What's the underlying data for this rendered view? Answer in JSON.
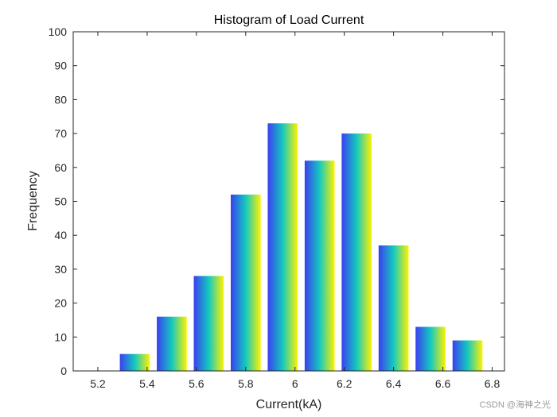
{
  "chart_data": {
    "type": "bar",
    "title": "Histogram of Load Current",
    "xlabel": "Current(kA)",
    "ylabel": "Frequency",
    "x": [
      5.2,
      5.35,
      5.5,
      5.65,
      5.8,
      5.95,
      6.1,
      6.25,
      6.4,
      6.55,
      6.7
    ],
    "values": [
      0,
      5,
      16,
      28,
      52,
      73,
      62,
      70,
      37,
      13,
      9
    ],
    "bin_width": 0.15,
    "xlim": [
      5.1,
      6.85
    ],
    "ylim": [
      0,
      100
    ],
    "xticks": [
      "5.2",
      "5.4",
      "5.6",
      "5.8",
      "6",
      "6.2",
      "6.4",
      "6.6",
      "6.8"
    ],
    "yticks": [
      "0",
      "10",
      "20",
      "30",
      "40",
      "50",
      "60",
      "70",
      "80",
      "90",
      "100"
    ],
    "bar_gradient": [
      "#3a3ff0",
      "#13c9c0",
      "#fff200"
    ],
    "grid": false,
    "legend": "none"
  },
  "watermark": "CSDN @海神之光"
}
